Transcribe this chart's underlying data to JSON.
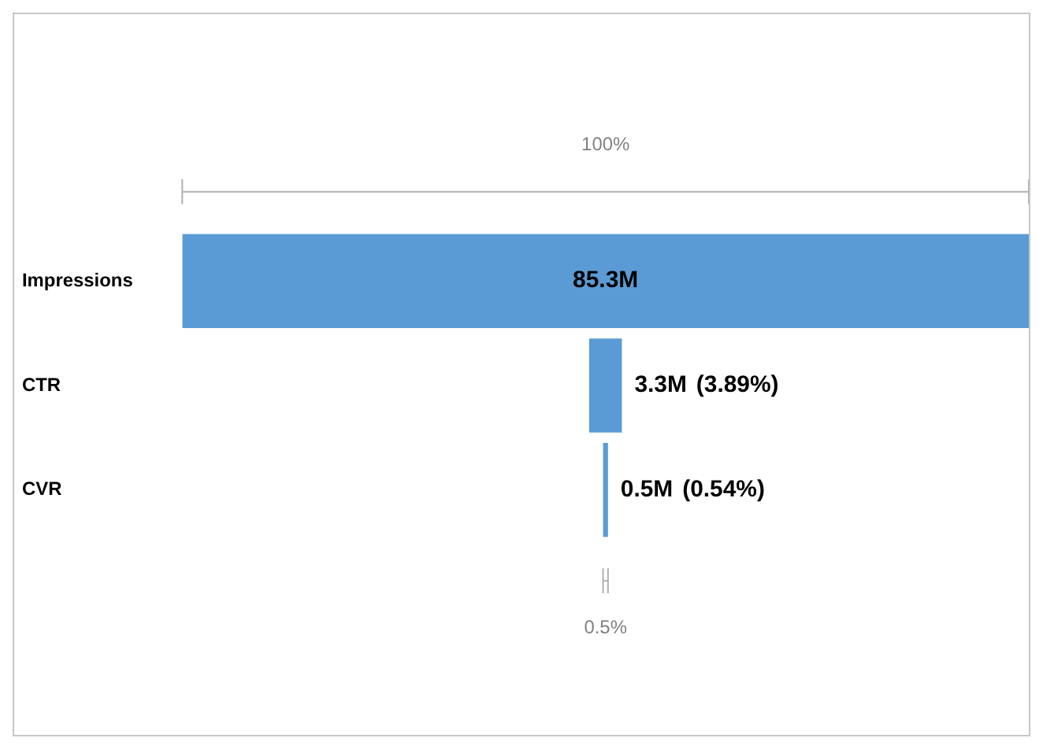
{
  "chart_data": {
    "type": "other",
    "categories": [
      "Impressions",
      "CTR",
      "CVR"
    ],
    "values": [
      85.3,
      3.3,
      0.5
    ],
    "value_labels": [
      "85.3M",
      "3.3M",
      "0.5M"
    ],
    "color": "#5b9bd5",
    "annotations": [
      "100%",
      "0.5%",
      {
        "text": "(3.89%)",
        "y": "CTR"
      },
      {
        "text": "(0.54%)",
        "y": "CVR"
      }
    ]
  }
}
